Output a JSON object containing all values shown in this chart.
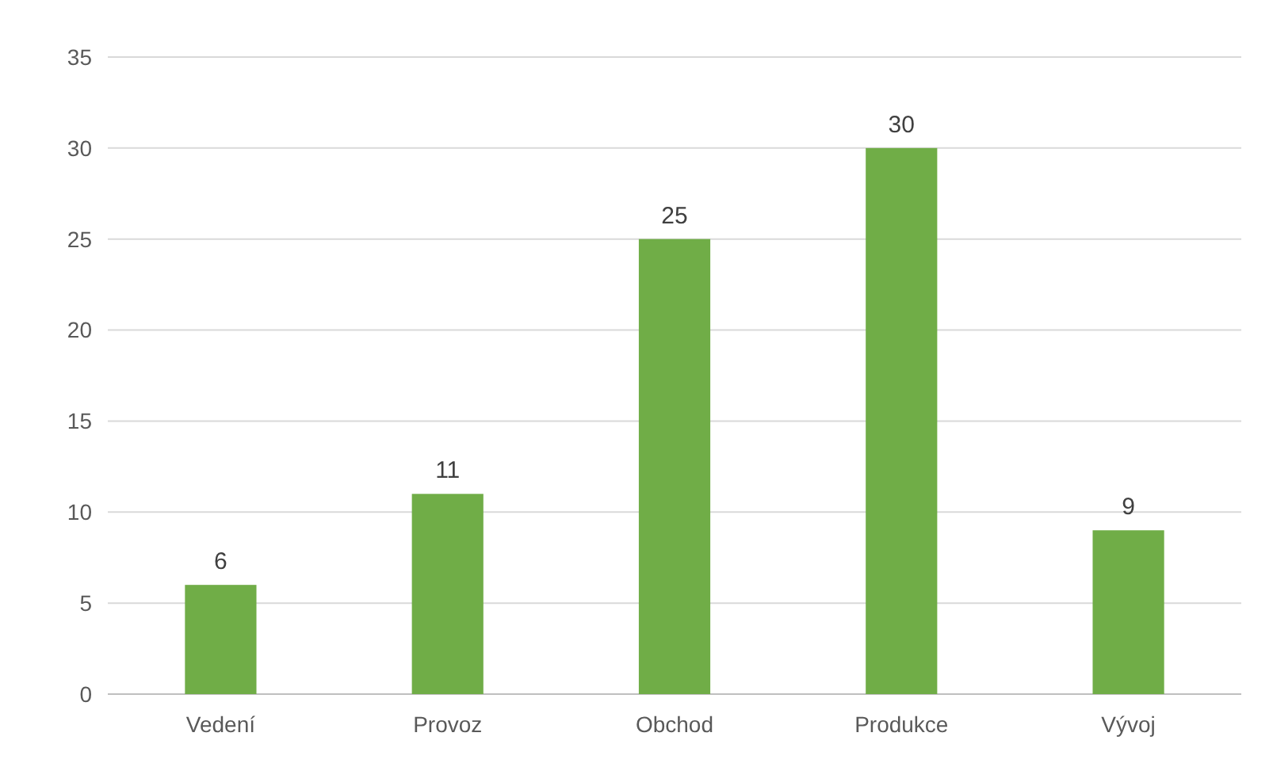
{
  "chart_data": {
    "type": "bar",
    "categories": [
      "Vedení",
      "Provoz",
      "Obchod",
      "Produkce",
      "Vývoj"
    ],
    "values": [
      6,
      11,
      25,
      30,
      9
    ],
    "color": "#70ad47",
    "ylim": [
      0,
      35
    ],
    "yticks": [
      0,
      5,
      10,
      15,
      20,
      25,
      30,
      35
    ],
    "grid": "y",
    "data_labels": true
  }
}
